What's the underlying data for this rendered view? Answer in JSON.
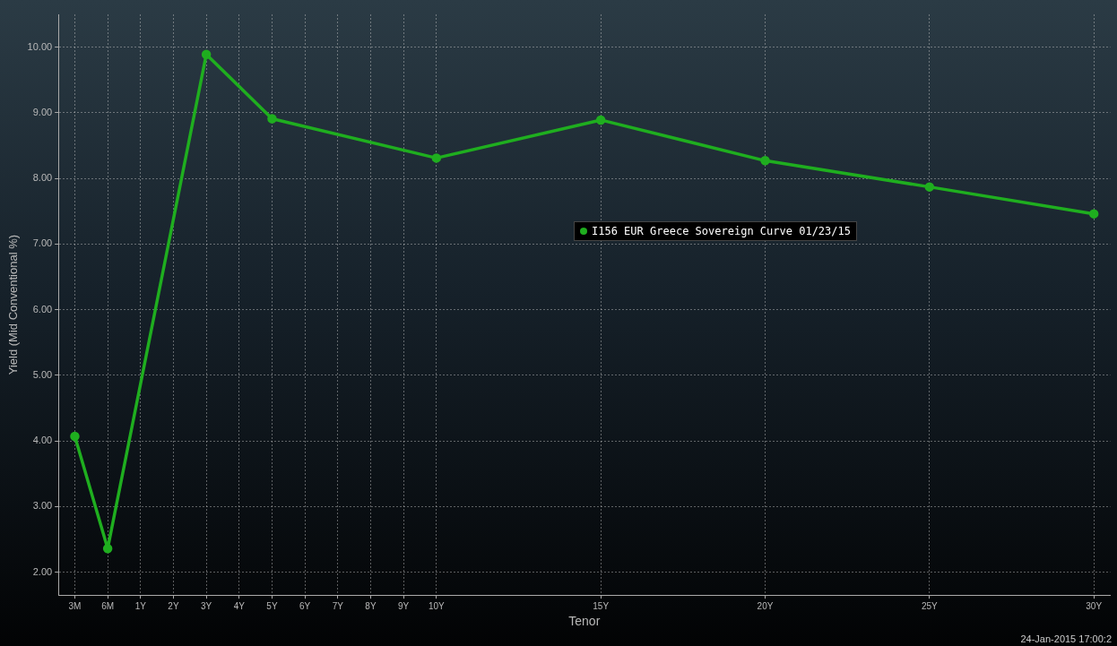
{
  "chart_data": {
    "type": "line",
    "xlabel": "Tenor",
    "ylabel": "Yield (Mid Conventional %)",
    "categories": [
      "3M",
      "6M",
      "1Y",
      "2Y",
      "3Y",
      "4Y",
      "5Y",
      "6Y",
      "7Y",
      "8Y",
      "9Y",
      "10Y",
      null,
      null,
      null,
      null,
      "15Y",
      null,
      null,
      null,
      null,
      "20Y",
      null,
      null,
      null,
      null,
      "25Y",
      null,
      null,
      null,
      null,
      "30Y"
    ],
    "series": [
      {
        "name": "I156 EUR Greece Sovereign Curve 01/23/15",
        "color": "#1fae1f",
        "values": [
          4.07,
          2.36,
          null,
          null,
          9.89,
          null,
          8.91,
          null,
          null,
          null,
          null,
          8.31,
          null,
          null,
          null,
          null,
          8.89,
          null,
          null,
          null,
          null,
          8.27,
          null,
          null,
          null,
          null,
          7.87,
          null,
          null,
          null,
          null,
          7.46
        ]
      }
    ],
    "ylim": [
      1.65,
      10.5
    ],
    "yticks": [
      {
        "value": 2,
        "label": "2.00"
      },
      {
        "value": 3,
        "label": "3.00"
      },
      {
        "value": 4,
        "label": "4.00"
      },
      {
        "value": 5,
        "label": "5.00"
      },
      {
        "value": 6,
        "label": "6.00"
      },
      {
        "value": 7,
        "label": "7.00"
      },
      {
        "value": 8,
        "label": "8.00"
      },
      {
        "value": 9,
        "label": "9.00"
      },
      {
        "value": 10,
        "label": "10.00"
      }
    ],
    "grid": true,
    "legend": "center",
    "marker": "circle",
    "line_style": "solid",
    "annotations": [
      "24-Jan-2015 17:00:2"
    ]
  }
}
